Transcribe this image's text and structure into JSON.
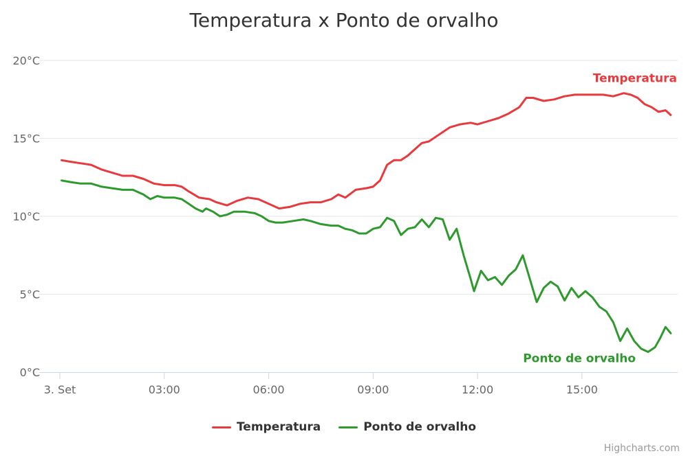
{
  "chart_data": {
    "type": "line",
    "title": "Temperatura x Ponto de orvalho",
    "y_axis": {
      "min": 0,
      "max": 20,
      "ticks": [
        0,
        5,
        10,
        15,
        20
      ],
      "tick_labels": [
        "0°C",
        "5°C",
        "10°C",
        "15°C",
        "20°C"
      ]
    },
    "x_axis": {
      "min": 0,
      "max": 17.75,
      "ticks": [
        0,
        3,
        6,
        9,
        12,
        15
      ],
      "tick_labels": [
        "3. Set",
        "03:00",
        "06:00",
        "09:00",
        "12:00",
        "15:00"
      ]
    },
    "grid": true,
    "legend_position": "bottom-center",
    "series": [
      {
        "name": "Temperatura",
        "color": "#e8393d",
        "end_label": "Temperatura",
        "points": [
          [
            0.05,
            13.6
          ],
          [
            0.3,
            13.5
          ],
          [
            0.6,
            13.4
          ],
          [
            0.9,
            13.3
          ],
          [
            1.2,
            13.0
          ],
          [
            1.5,
            12.8
          ],
          [
            1.8,
            12.6
          ],
          [
            2.1,
            12.6
          ],
          [
            2.4,
            12.4
          ],
          [
            2.7,
            12.1
          ],
          [
            3.0,
            12.0
          ],
          [
            3.3,
            12.0
          ],
          [
            3.5,
            11.9
          ],
          [
            3.7,
            11.6
          ],
          [
            4.0,
            11.2
          ],
          [
            4.3,
            11.1
          ],
          [
            4.5,
            10.9
          ],
          [
            4.8,
            10.7
          ],
          [
            5.1,
            11.0
          ],
          [
            5.4,
            11.2
          ],
          [
            5.7,
            11.1
          ],
          [
            6.0,
            10.8
          ],
          [
            6.3,
            10.5
          ],
          [
            6.6,
            10.6
          ],
          [
            6.9,
            10.8
          ],
          [
            7.2,
            10.9
          ],
          [
            7.5,
            10.9
          ],
          [
            7.8,
            11.1
          ],
          [
            8.0,
            11.4
          ],
          [
            8.2,
            11.2
          ],
          [
            8.5,
            11.7
          ],
          [
            8.8,
            11.8
          ],
          [
            9.0,
            11.9
          ],
          [
            9.2,
            12.3
          ],
          [
            9.4,
            13.3
          ],
          [
            9.6,
            13.6
          ],
          [
            9.8,
            13.6
          ],
          [
            10.0,
            13.9
          ],
          [
            10.2,
            14.3
          ],
          [
            10.4,
            14.7
          ],
          [
            10.6,
            14.8
          ],
          [
            10.8,
            15.1
          ],
          [
            11.0,
            15.4
          ],
          [
            11.2,
            15.7
          ],
          [
            11.5,
            15.9
          ],
          [
            11.8,
            16.0
          ],
          [
            12.0,
            15.9
          ],
          [
            12.3,
            16.1
          ],
          [
            12.6,
            16.3
          ],
          [
            12.9,
            16.6
          ],
          [
            13.2,
            17.0
          ],
          [
            13.4,
            17.6
          ],
          [
            13.6,
            17.6
          ],
          [
            13.9,
            17.4
          ],
          [
            14.2,
            17.5
          ],
          [
            14.5,
            17.7
          ],
          [
            14.8,
            17.8
          ],
          [
            15.0,
            17.8
          ],
          [
            15.3,
            17.8
          ],
          [
            15.6,
            17.8
          ],
          [
            15.9,
            17.7
          ],
          [
            16.2,
            17.9
          ],
          [
            16.4,
            17.8
          ],
          [
            16.6,
            17.6
          ],
          [
            16.8,
            17.2
          ],
          [
            17.0,
            17.0
          ],
          [
            17.2,
            16.7
          ],
          [
            17.4,
            16.8
          ],
          [
            17.55,
            16.5
          ]
        ]
      },
      {
        "name": "Ponto de orvalho",
        "color": "#2e9a2e",
        "end_label": "Ponto de orvalho",
        "points": [
          [
            0.05,
            12.3
          ],
          [
            0.3,
            12.2
          ],
          [
            0.6,
            12.1
          ],
          [
            0.9,
            12.1
          ],
          [
            1.2,
            11.9
          ],
          [
            1.5,
            11.8
          ],
          [
            1.8,
            11.7
          ],
          [
            2.1,
            11.7
          ],
          [
            2.4,
            11.4
          ],
          [
            2.6,
            11.1
          ],
          [
            2.8,
            11.3
          ],
          [
            3.0,
            11.2
          ],
          [
            3.3,
            11.2
          ],
          [
            3.5,
            11.1
          ],
          [
            3.7,
            10.8
          ],
          [
            3.9,
            10.5
          ],
          [
            4.1,
            10.3
          ],
          [
            4.2,
            10.5
          ],
          [
            4.4,
            10.3
          ],
          [
            4.6,
            10.0
          ],
          [
            4.8,
            10.1
          ],
          [
            5.0,
            10.3
          ],
          [
            5.3,
            10.3
          ],
          [
            5.6,
            10.2
          ],
          [
            5.8,
            10.0
          ],
          [
            6.0,
            9.7
          ],
          [
            6.2,
            9.6
          ],
          [
            6.4,
            9.6
          ],
          [
            6.7,
            9.7
          ],
          [
            7.0,
            9.8
          ],
          [
            7.2,
            9.7
          ],
          [
            7.5,
            9.5
          ],
          [
            7.8,
            9.4
          ],
          [
            8.0,
            9.4
          ],
          [
            8.2,
            9.2
          ],
          [
            8.4,
            9.1
          ],
          [
            8.6,
            8.9
          ],
          [
            8.8,
            8.9
          ],
          [
            9.0,
            9.2
          ],
          [
            9.2,
            9.3
          ],
          [
            9.4,
            9.9
          ],
          [
            9.6,
            9.7
          ],
          [
            9.8,
            8.8
          ],
          [
            10.0,
            9.2
          ],
          [
            10.2,
            9.3
          ],
          [
            10.4,
            9.8
          ],
          [
            10.6,
            9.3
          ],
          [
            10.8,
            9.9
          ],
          [
            11.0,
            9.8
          ],
          [
            11.2,
            8.5
          ],
          [
            11.4,
            9.2
          ],
          [
            11.6,
            7.5
          ],
          [
            11.8,
            6.0
          ],
          [
            11.9,
            5.2
          ],
          [
            12.1,
            6.5
          ],
          [
            12.3,
            5.9
          ],
          [
            12.5,
            6.1
          ],
          [
            12.7,
            5.6
          ],
          [
            12.9,
            6.2
          ],
          [
            13.1,
            6.6
          ],
          [
            13.3,
            7.5
          ],
          [
            13.5,
            6.0
          ],
          [
            13.7,
            4.5
          ],
          [
            13.9,
            5.4
          ],
          [
            14.1,
            5.8
          ],
          [
            14.3,
            5.5
          ],
          [
            14.5,
            4.6
          ],
          [
            14.7,
            5.4
          ],
          [
            14.9,
            4.8
          ],
          [
            15.1,
            5.2
          ],
          [
            15.3,
            4.8
          ],
          [
            15.5,
            4.2
          ],
          [
            15.7,
            3.9
          ],
          [
            15.9,
            3.2
          ],
          [
            16.1,
            2.0
          ],
          [
            16.3,
            2.8
          ],
          [
            16.5,
            2.0
          ],
          [
            16.7,
            1.5
          ],
          [
            16.9,
            1.3
          ],
          [
            17.1,
            1.6
          ],
          [
            17.25,
            2.2
          ],
          [
            17.4,
            2.9
          ],
          [
            17.55,
            2.5
          ]
        ]
      }
    ],
    "credits": "Highcharts.com"
  }
}
